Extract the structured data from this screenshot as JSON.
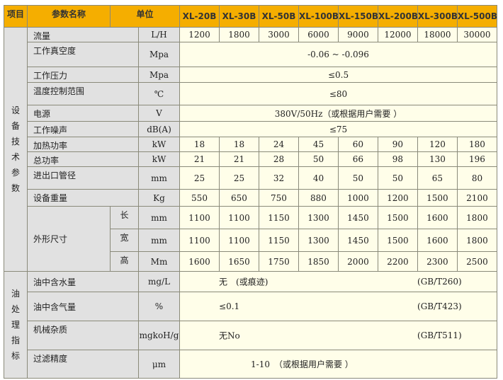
{
  "header": {
    "item": "项目",
    "param": "参数名称",
    "unit": "单位",
    "models": [
      "XL-20B",
      "XL-30B",
      "XL-50B",
      "XL-100B",
      "XL-150B",
      "XL-200B",
      "XL-300B",
      "XL-500B"
    ]
  },
  "colors": {
    "header": "#f5ae00",
    "label_bg": "#e1e1e1",
    "value_bg": "#fffee9"
  },
  "equipment": {
    "section_label": "设备技术参数",
    "rows": [
      {
        "name": "流量",
        "unit": "L/H",
        "values": [
          "1200",
          "1800",
          "3000",
          "6000",
          "9000",
          "12000",
          "18000",
          "30000"
        ]
      },
      {
        "name": "工作真空度",
        "unit": "Mpa",
        "value": "-0.06 ~ -0.096"
      },
      {
        "name": "工作压力",
        "unit": "Mpa",
        "value": "≤0.5"
      },
      {
        "name": "温度控制范围",
        "unit": "℃",
        "value": "≤80"
      },
      {
        "name": "电源",
        "unit": "V",
        "value": "380V/50Hz（或根据用户需要 ）"
      },
      {
        "name": "工作噪声",
        "unit": "dB(A)",
        "value": "≤75"
      },
      {
        "name": "加热功率",
        "unit": "kW",
        "values": [
          "18",
          "18",
          "24",
          "45",
          "60",
          "90",
          "120",
          "180"
        ]
      },
      {
        "name": "总功率",
        "unit": "kW",
        "values": [
          "21",
          "21",
          "28",
          "50",
          "66",
          "98",
          "130",
          "196"
        ]
      },
      {
        "name": "进出口管径",
        "unit": "mm",
        "values": [
          "25",
          "25",
          "32",
          "40",
          "50",
          "50",
          "65",
          "80"
        ]
      },
      {
        "name": "设备重量",
        "unit": "Kg",
        "values": [
          "550",
          "650",
          "750",
          "880",
          "1000",
          "1200",
          "1500",
          "2100"
        ]
      }
    ],
    "dimensions": {
      "name": "外形尺寸",
      "rows": [
        {
          "sub": "长",
          "unit": "mm",
          "values": [
            "1100",
            "1100",
            "1150",
            "1300",
            "1450",
            "1500",
            "1600",
            "1800"
          ]
        },
        {
          "sub": "宽",
          "unit": "mm",
          "values": [
            "1100",
            "1100",
            "1150",
            "1300",
            "1450",
            "1500",
            "1600",
            "1800"
          ]
        },
        {
          "sub": "高",
          "unit": "Mm",
          "values": [
            "1600",
            "1650",
            "1750",
            "1850",
            "2000",
            "2200",
            "2300",
            "2500"
          ]
        }
      ]
    }
  },
  "oil": {
    "section_label": "油处理指标",
    "rows": [
      {
        "name": "油中含水量",
        "unit": "mg/L",
        "value": "无　(或痕迹)",
        "standard": "(GB/T260)"
      },
      {
        "name": "油中含气量",
        "unit": "%",
        "value": "≤0.1",
        "standard": "(GB/T423)"
      },
      {
        "name": "机械杂质",
        "unit": "mgkoH/g",
        "value": "无No",
        "standard": "(GB/T511)"
      },
      {
        "name": "过滤精度",
        "unit": "μm",
        "value": "1-10　（或根据用户需要 ）"
      }
    ]
  }
}
